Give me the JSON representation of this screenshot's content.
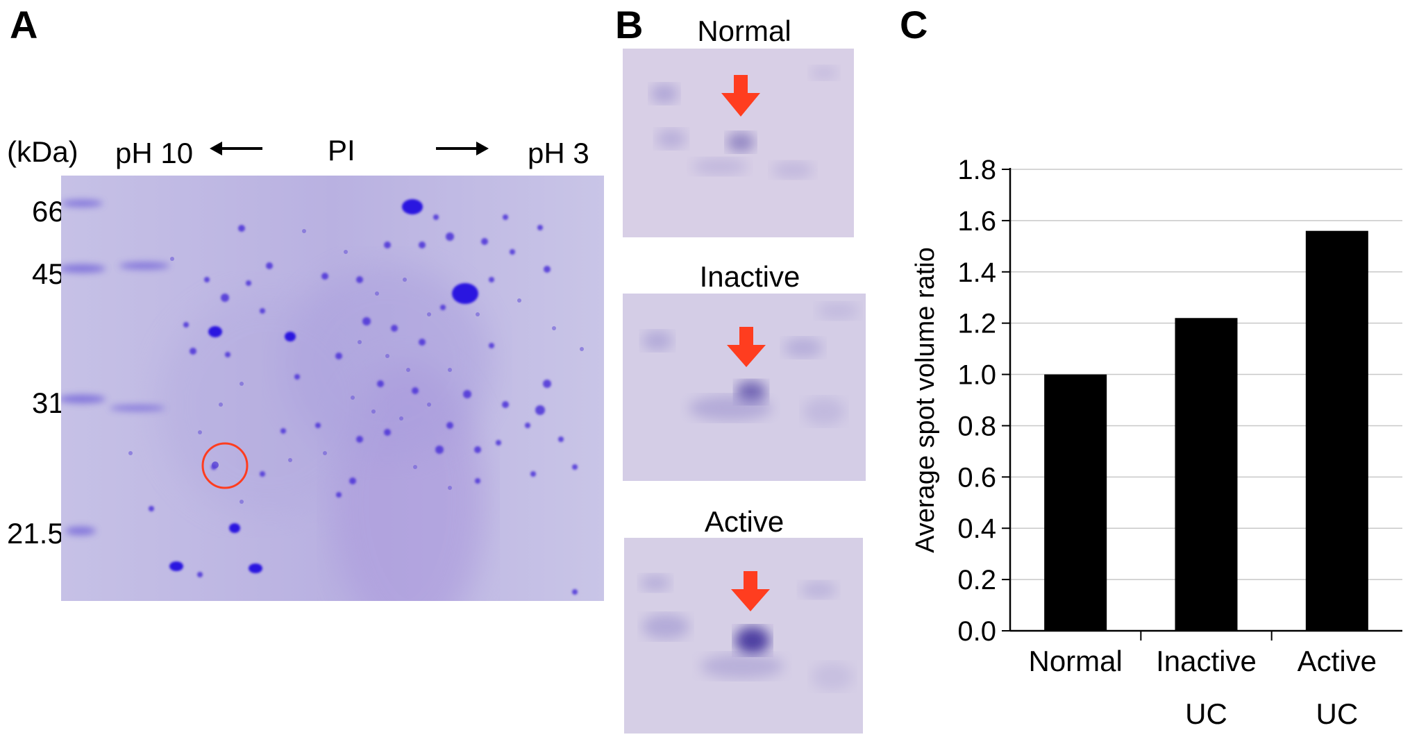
{
  "panels": {
    "a": {
      "label": "A",
      "unit_label": "(kDa)",
      "ph_left": "pH 10",
      "pi_label": "PI",
      "ph_right": "pH 3",
      "mw_markers": [
        "66",
        "45",
        "31",
        "21.5"
      ]
    },
    "b": {
      "label": "B",
      "groups": [
        {
          "title": "Normal",
          "spot_intensity": 0.45
        },
        {
          "title": "Inactive",
          "spot_intensity": 0.65
        },
        {
          "title": "Active",
          "spot_intensity": 0.9
        }
      ]
    },
    "c": {
      "label": "C"
    }
  },
  "colors": {
    "gel": "#bfb8e2",
    "strip": "#d8cfe6",
    "spot": "#3a1fd6",
    "arrow": "#ff3d1f",
    "bar": "#000000"
  },
  "chart_data": {
    "type": "bar",
    "categories": [
      "Normal",
      "Inactive UC",
      "Active UC"
    ],
    "category_lines": [
      [
        "Normal"
      ],
      [
        "Inactive",
        "UC"
      ],
      [
        "Active",
        "UC"
      ]
    ],
    "values": [
      1.0,
      1.22,
      1.56
    ],
    "ylabel": "Average spot volume ratio",
    "ylim": [
      0,
      1.8
    ],
    "yticks": [
      "0.0",
      "0.2",
      "0.4",
      "0.6",
      "0.8",
      "1.0",
      "1.2",
      "1.4",
      "1.6",
      "1.8"
    ],
    "grid": true
  }
}
